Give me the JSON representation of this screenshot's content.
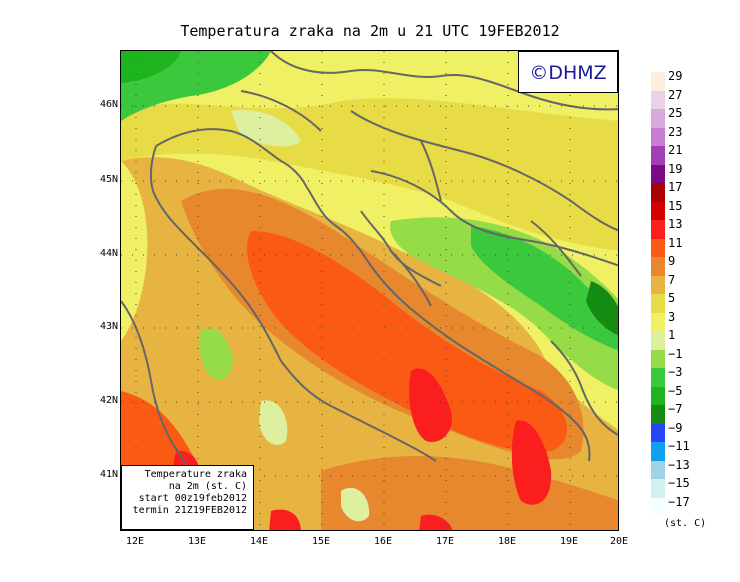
{
  "title": "Temperatura zraka na 2m u 21 UTC 19FEB2012",
  "logo": "©DHMZ",
  "info_box": [
    "Temperature zraka",
    "na 2m (st. C)",
    "start 00z19feb2012",
    "termin 21Z19FEB2012"
  ],
  "lat_labels": [
    "46N",
    "45N",
    "44N",
    "43N",
    "42N",
    "41N"
  ],
  "lon_labels": [
    "12E",
    "13E",
    "14E",
    "15E",
    "16E",
    "17E",
    "18E",
    "19E",
    "20E"
  ],
  "legend": {
    "units": "(st. C)",
    "labels": [
      "29",
      "27",
      "25",
      "23",
      "21",
      "19",
      "17",
      "15",
      "13",
      "11",
      "9",
      "7",
      "5",
      "3",
      "1",
      "−1",
      "−3",
      "−5",
      "−7",
      "−9",
      "−11",
      "−13",
      "−15",
      "−17"
    ],
    "colors": [
      "#fdeee0",
      "#e8d2e8",
      "#d9a8dc",
      "#c77ed0",
      "#a23fb8",
      "#7a0a86",
      "#aa0000",
      "#d40000",
      "#fa1e1e",
      "#fa5a14",
      "#e8882e",
      "#e8b441",
      "#e8dc46",
      "#f0f064",
      "#dcf0a0",
      "#96dc48",
      "#3cc83c",
      "#1eb41e",
      "#148c14",
      "#2846f5",
      "#0fa0f0",
      "#a0d2e6",
      "#d2f0f0",
      "#f4ffff"
    ]
  },
  "palette": {
    "sea_warm": "#fa5a14",
    "hot": "#fa1e1e",
    "coast_warm": "#e8882e",
    "mild": "#e8b441",
    "cool": "#e8dc46",
    "cooler": "#f0f064",
    "near_zero": "#dcf0a0",
    "cold": "#96dc48",
    "colder": "#3cc83c",
    "coldest": "#1eb41e",
    "border": "#666666"
  }
}
